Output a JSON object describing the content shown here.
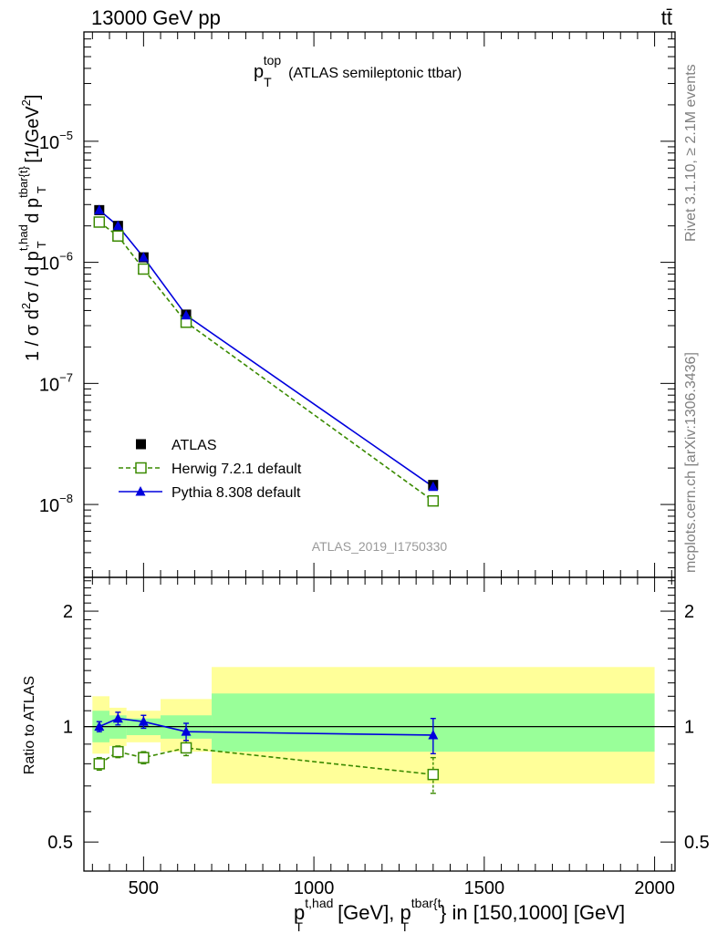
{
  "header": {
    "left": "13000 GeV pp",
    "right": "tt̄"
  },
  "side_labels": {
    "rivet": "Rivet 3.1.10, ≥ 2.1M events",
    "mcplots": "mcplots.cern.ch [arXiv:1306.3436]"
  },
  "colors": {
    "data": "#000000",
    "herwig": "#3a8a00",
    "pythia": "#0000dd",
    "band_inner": "#99ff99",
    "band_outer": "#ffff99"
  },
  "chart_data": [
    {
      "type": "line",
      "panel": "main",
      "title": "p_T^top (ATLAS semileptonic ttbar)",
      "title_parts": {
        "main": "p",
        "sub": "T",
        "sup": "top",
        "rest": "(ATLAS semileptonic ttbar)"
      },
      "ylabel": "1 / σ d²σ / d p_T^{t,had} d p_T^{tbar{t}} [1/GeV²]",
      "ylabel_parts": [
        "1 / σ d",
        "2",
        "σ / d p",
        "t,had",
        "T",
        " d p",
        "tbar{t}",
        "T",
        " [1/GeV",
        "2",
        "]"
      ],
      "y_scale": "log",
      "ylim": [
        2.5e-09,
        8e-05
      ],
      "xlim": [
        325,
        2060
      ],
      "yticks_major": [
        {
          "v": 1e-08,
          "label": "10",
          "exp": "−8"
        },
        {
          "v": 1e-07,
          "label": "10",
          "exp": "−7"
        },
        {
          "v": 1e-06,
          "label": "10",
          "exp": "−6"
        },
        {
          "v": 1e-05,
          "label": "10",
          "exp": "−5"
        }
      ],
      "watermark": "ATLAS_2019_I1750330",
      "legend_placement": "lower-left",
      "series": [
        {
          "name": "ATLAS",
          "style": "data",
          "x": [
            370,
            425,
            500,
            625,
            1350
          ],
          "y": [
            2.7e-06,
            2e-06,
            1.1e-06,
            3.7e-07,
            1.45e-08
          ]
        },
        {
          "name": "Herwig 7.2.1 default",
          "style": "herwig",
          "x": [
            370,
            425,
            500,
            625,
            1350
          ],
          "y": [
            2.15e-06,
            1.65e-06,
            8.8e-07,
            3.2e-07,
            1.07e-08
          ]
        },
        {
          "name": "Pythia 8.308 default",
          "style": "pythia",
          "x": [
            370,
            425,
            500,
            625,
            1350
          ],
          "y": [
            2.7e-06,
            2e-06,
            1.1e-06,
            3.65e-07,
            1.4e-08
          ]
        }
      ]
    },
    {
      "type": "line",
      "panel": "ratio",
      "ylabel": "Ratio to ATLAS",
      "xlabel": "p_T^{t,had} [GeV], p_T^{tbar{t}} in [150,1000] [GeV]",
      "xlabel_parts": [
        "p",
        "t,had",
        "T",
        " [GeV], p",
        "tbar{t",
        "T",
        "} in [150,1000] [GeV]"
      ],
      "y_scale": "log",
      "ylim": [
        0.42,
        2.45
      ],
      "xlim": [
        325,
        2060
      ],
      "xticks": [
        {
          "v": 500,
          "label": "500"
        },
        {
          "v": 1000,
          "label": "1000"
        },
        {
          "v": 1500,
          "label": "1500"
        },
        {
          "v": 2000,
          "label": "2000"
        }
      ],
      "yticks": [
        {
          "v": 0.5,
          "label": "0.5"
        },
        {
          "v": 1,
          "label": "1"
        },
        {
          "v": 2,
          "label": "2"
        }
      ],
      "bands": [
        {
          "x0": 350,
          "x1": 400,
          "inner": [
            0.91,
            1.1
          ],
          "outer": [
            0.85,
            1.2
          ]
        },
        {
          "x0": 400,
          "x1": 450,
          "inner": [
            0.93,
            1.07
          ],
          "outer": [
            0.89,
            1.12
          ]
        },
        {
          "x0": 450,
          "x1": 550,
          "inner": [
            0.95,
            1.05
          ],
          "outer": [
            0.91,
            1.1
          ]
        },
        {
          "x0": 550,
          "x1": 700,
          "inner": [
            0.93,
            1.07
          ],
          "outer": [
            0.86,
            1.18
          ]
        },
        {
          "x0": 700,
          "x1": 2000,
          "inner": [
            0.86,
            1.22
          ],
          "outer": [
            0.71,
            1.43
          ]
        }
      ],
      "series": [
        {
          "name": "Herwig 7.2.1 default",
          "style": "herwig",
          "x": [
            370,
            425,
            500,
            625,
            1350
          ],
          "y": [
            0.8,
            0.86,
            0.83,
            0.88,
            0.75
          ],
          "err": [
            0.03,
            0.03,
            0.03,
            0.04,
            0.08
          ]
        },
        {
          "name": "Pythia 8.308 default",
          "style": "pythia",
          "x": [
            370,
            425,
            500,
            625,
            1350
          ],
          "y": [
            1.0,
            1.05,
            1.03,
            0.97,
            0.95
          ],
          "err": [
            0.03,
            0.04,
            0.04,
            0.05,
            0.1
          ]
        }
      ]
    }
  ]
}
